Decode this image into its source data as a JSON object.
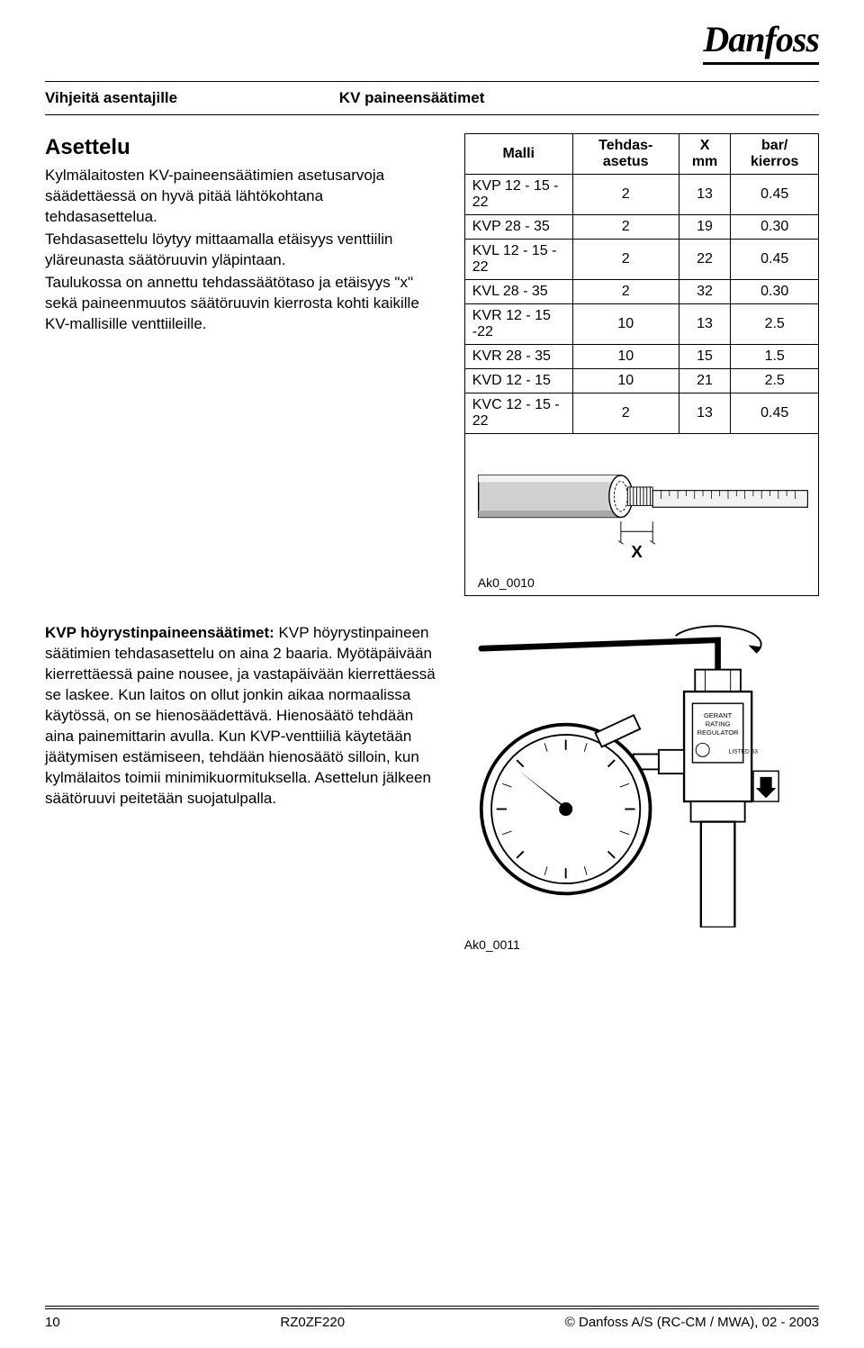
{
  "logo_text": "Danfoss",
  "header": {
    "left": "Vihjeitä asentajille",
    "right": "KV paineensäätimet"
  },
  "section1": {
    "title": "Asettelu",
    "p1": "Kylmälaitosten KV-paineensäätimien asetusarvoja säädettäessä on hyvä pitää lähtökohtana tehdasasettelua.",
    "p2": "Tehdasasettelu löytyy mittaamalla etäisyys venttiilin yläreunasta säätöruuvin yläpintaan.",
    "p3": "Taulukossa on annettu tehdassäätötaso ja etäisyys \"x\" sekä paineenmuutos säätöruuvin kierrosta kohti kaikille KV-mallisille venttiileille."
  },
  "table": {
    "headers": [
      "Malli",
      "Tehdas-asetus",
      "X mm",
      "bar/ kierros"
    ],
    "rows": [
      [
        "KVP 12 - 15 - 22",
        "2",
        "13",
        "0.45"
      ],
      [
        "KVP 28 - 35",
        "2",
        "19",
        "0.30"
      ],
      [
        "KVL 12 - 15 - 22",
        "2",
        "22",
        "0.45"
      ],
      [
        "KVL 28 - 35",
        "2",
        "32",
        "0.30"
      ],
      [
        "KVR 12 - 15 -22",
        "10",
        "13",
        "2.5"
      ],
      [
        "KVR 28 - 35",
        "10",
        "15",
        "1.5"
      ],
      [
        "KVD 12 - 15",
        "10",
        "21",
        "2.5"
      ],
      [
        "KVC 12 - 15 - 22",
        "2",
        "13",
        "0.45"
      ]
    ]
  },
  "fig1": {
    "x_label": "X",
    "caption": "Ak0_0010"
  },
  "section2": {
    "title": "KVP höyrystinpaineensäätimet:",
    "body": "KVP höyrystinpaineen säätimien tehdasasettelu on aina 2 baaria. Myötäpäivään kierrettäessä paine nousee, ja vastapäivään kierrettäessä se laskee. Kun laitos on ollut jonkin aikaa normaalissa käytössä, on se hienosäädettävä. Hienosäätö tehdään aina painemittarin avulla. Kun KVP-venttiiliä käytetään jäätymisen estämiseen, tehdään hienosäätö silloin, kun kylmälaitos toimii minimikuormituksella. Asettelun jälkeen säätöruuvi peitetään suojatulpalla."
  },
  "fig2": {
    "caption": "Ak0_0011"
  },
  "footer": {
    "page": "10",
    "code": "RZ0ZF220",
    "copyright": "© Danfoss A/S  (RC-CM / MWA), 02 - 2003"
  },
  "colors": {
    "text": "#000000",
    "bg": "#ffffff",
    "rule": "#000000",
    "fill_gray": "#d0d0d0",
    "fill_light": "#f2f2f2"
  }
}
